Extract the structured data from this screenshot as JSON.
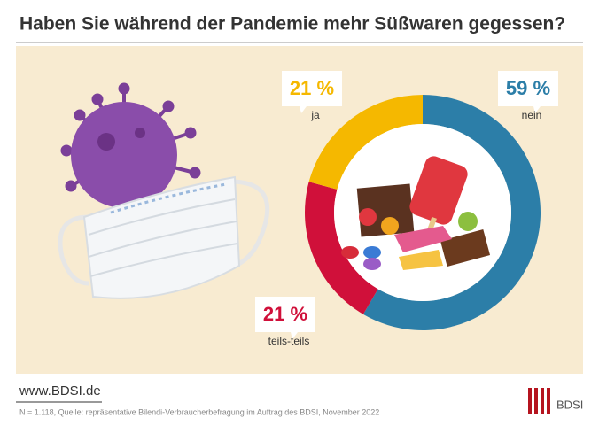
{
  "chart_data": {
    "type": "pie",
    "title": "Haben Sie während der Pandemie mehr Süßwaren gegessen?",
    "categories": [
      "nein",
      "teils-teils",
      "ja"
    ],
    "values": [
      59,
      21,
      21
    ],
    "value_labels": [
      "59 %",
      "21 %",
      "21 %"
    ],
    "colors": [
      "#2c7ea8",
      "#d0103a",
      "#f5b800"
    ]
  },
  "footer": {
    "url": "www.BDSI.de",
    "source": "N = 1.118, Quelle: repräsentative Bilendi-Verbraucherbefragung im Auftrag des BDSI, November 2022",
    "logo": "BDSI"
  }
}
